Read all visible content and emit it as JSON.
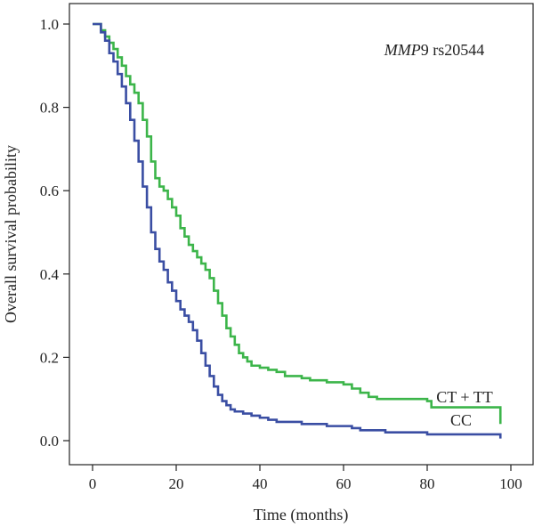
{
  "chart_data": {
    "type": "line",
    "title": "",
    "annotation": {
      "gene": "MMP9",
      "snp": "rs20544"
    },
    "xlabel": "Time (months)",
    "ylabel": "Overall survival probability",
    "xlim": [
      0,
      100
    ],
    "ylim": [
      0,
      1.0
    ],
    "xticks": [
      "0",
      "20",
      "40",
      "60",
      "80",
      "100"
    ],
    "yticks": [
      "0.0",
      "0.2",
      "0.4",
      "0.6",
      "0.8",
      "1.0"
    ],
    "grid": false,
    "series": [
      {
        "name": "CT + TT",
        "color": "#3cb54a",
        "steps": [
          [
            0,
            1.0
          ],
          [
            2,
            0.985
          ],
          [
            3,
            0.97
          ],
          [
            4,
            0.955
          ],
          [
            5,
            0.94
          ],
          [
            6,
            0.92
          ],
          [
            7,
            0.9
          ],
          [
            8,
            0.875
          ],
          [
            9,
            0.855
          ],
          [
            10,
            0.835
          ],
          [
            11,
            0.81
          ],
          [
            12,
            0.77
          ],
          [
            13,
            0.73
          ],
          [
            14,
            0.67
          ],
          [
            15,
            0.63
          ],
          [
            16,
            0.61
          ],
          [
            17,
            0.6
          ],
          [
            18,
            0.58
          ],
          [
            19,
            0.56
          ],
          [
            20,
            0.54
          ],
          [
            21,
            0.51
          ],
          [
            22,
            0.49
          ],
          [
            23,
            0.47
          ],
          [
            24,
            0.455
          ],
          [
            25,
            0.44
          ],
          [
            26,
            0.425
          ],
          [
            27,
            0.41
          ],
          [
            28,
            0.39
          ],
          [
            29,
            0.36
          ],
          [
            30,
            0.33
          ],
          [
            31,
            0.3
          ],
          [
            32,
            0.27
          ],
          [
            33,
            0.25
          ],
          [
            34,
            0.23
          ],
          [
            35,
            0.21
          ],
          [
            36,
            0.2
          ],
          [
            37,
            0.19
          ],
          [
            38,
            0.18
          ],
          [
            40,
            0.175
          ],
          [
            42,
            0.17
          ],
          [
            44,
            0.165
          ],
          [
            46,
            0.155
          ],
          [
            50,
            0.15
          ],
          [
            52,
            0.145
          ],
          [
            56,
            0.14
          ],
          [
            60,
            0.135
          ],
          [
            62,
            0.125
          ],
          [
            64,
            0.115
          ],
          [
            66,
            0.105
          ],
          [
            68,
            0.1
          ],
          [
            80,
            0.095
          ],
          [
            81,
            0.08
          ],
          [
            97,
            0.08
          ],
          [
            97.5,
            0.04
          ]
        ]
      },
      {
        "name": "CC",
        "color": "#3a4ea3",
        "steps": [
          [
            0,
            1.0
          ],
          [
            2,
            0.98
          ],
          [
            3,
            0.96
          ],
          [
            4,
            0.93
          ],
          [
            5,
            0.91
          ],
          [
            6,
            0.88
          ],
          [
            7,
            0.85
          ],
          [
            8,
            0.81
          ],
          [
            9,
            0.77
          ],
          [
            10,
            0.72
          ],
          [
            11,
            0.67
          ],
          [
            12,
            0.61
          ],
          [
            13,
            0.56
          ],
          [
            14,
            0.5
          ],
          [
            15,
            0.46
          ],
          [
            16,
            0.43
          ],
          [
            17,
            0.41
          ],
          [
            18,
            0.38
          ],
          [
            19,
            0.36
          ],
          [
            20,
            0.335
          ],
          [
            21,
            0.315
          ],
          [
            22,
            0.3
          ],
          [
            23,
            0.285
          ],
          [
            24,
            0.265
          ],
          [
            25,
            0.24
          ],
          [
            26,
            0.21
          ],
          [
            27,
            0.18
          ],
          [
            28,
            0.155
          ],
          [
            29,
            0.13
          ],
          [
            30,
            0.11
          ],
          [
            31,
            0.095
          ],
          [
            32,
            0.085
          ],
          [
            33,
            0.075
          ],
          [
            34,
            0.07
          ],
          [
            36,
            0.065
          ],
          [
            38,
            0.06
          ],
          [
            40,
            0.055
          ],
          [
            42,
            0.05
          ],
          [
            44,
            0.045
          ],
          [
            50,
            0.04
          ],
          [
            56,
            0.035
          ],
          [
            62,
            0.03
          ],
          [
            64,
            0.025
          ],
          [
            70,
            0.02
          ],
          [
            80,
            0.015
          ],
          [
            97,
            0.015
          ],
          [
            97.5,
            0.005
          ]
        ]
      }
    ],
    "series_label_positions": "right, at curve ends (CT + TT above CC)"
  }
}
